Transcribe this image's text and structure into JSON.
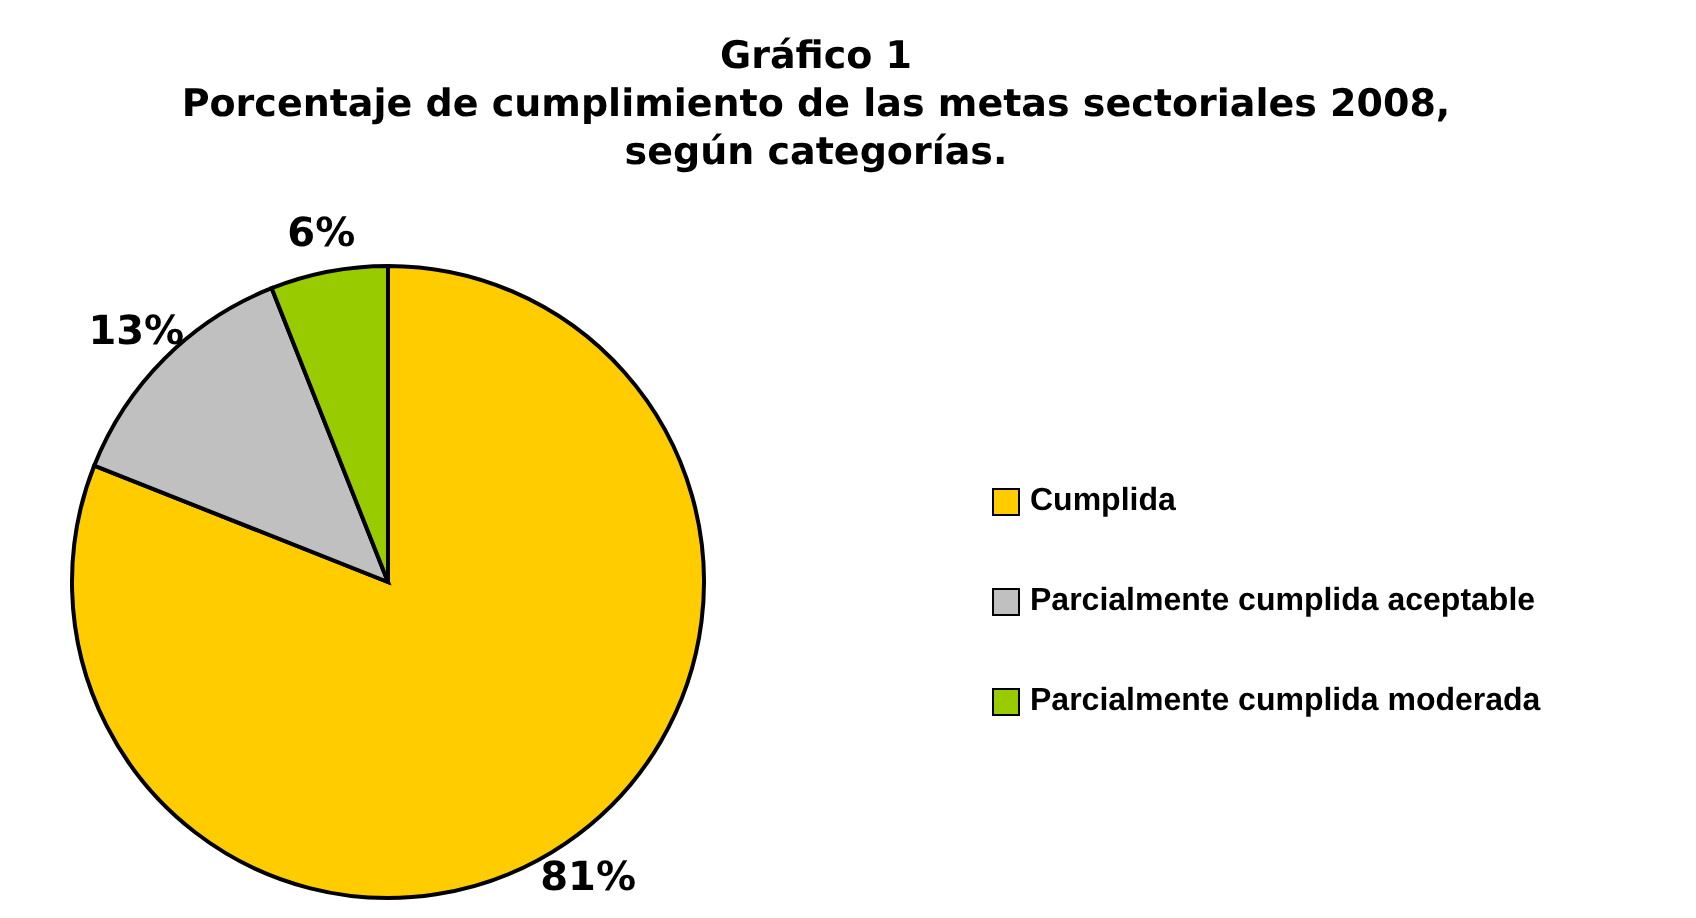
{
  "chart_data": {
    "type": "pie",
    "title": "Gráfico 1",
    "subtitle": "Porcentaje de cumplimiento de las metas sectoriales 2008, según categorías.",
    "categories": [
      "Cumplida",
      "Parcialmente cumplida aceptable",
      "Parcialmente cumplida moderada"
    ],
    "values": [
      81,
      13,
      6
    ],
    "colors": [
      "#ffcc00",
      "#c0c0c0",
      "#99cc00"
    ],
    "value_labels": [
      "81%",
      "13%",
      "6%"
    ],
    "legend": "right"
  }
}
